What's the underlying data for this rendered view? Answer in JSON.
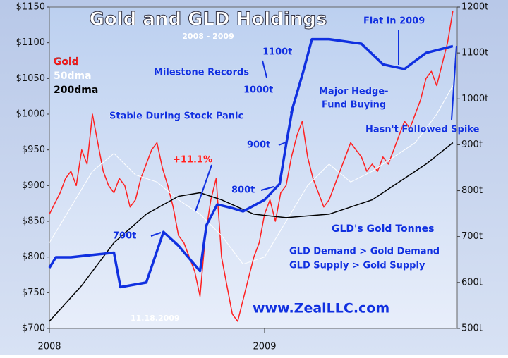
{
  "chart_data": {
    "type": "line",
    "title": "Gold and GLD Holdings",
    "subtitle": "2008 - 2009",
    "xlim": [
      2008,
      2009.895
    ],
    "xticks": [
      2008,
      2009
    ],
    "ylim": [
      700,
      1150
    ],
    "yticks": [
      {
        "value": 700,
        "label": "$700"
      },
      {
        "value": 750,
        "label": "$750"
      },
      {
        "value": 800,
        "label": "$800"
      },
      {
        "value": 850,
        "label": "$850"
      },
      {
        "value": 900,
        "label": "$900"
      },
      {
        "value": 950,
        "label": "$950"
      },
      {
        "value": 1000,
        "label": "$1000"
      },
      {
        "value": 1050,
        "label": "$1050"
      },
      {
        "value": 1100,
        "label": "$1100"
      },
      {
        "value": 1150,
        "label": "$1150"
      }
    ],
    "y2lim": [
      500,
      1200
    ],
    "y2ticks": [
      {
        "value": 500,
        "label": "500t"
      },
      {
        "value": 600,
        "label": "600t"
      },
      {
        "value": 700,
        "label": "700t"
      },
      {
        "value": 800,
        "label": "800t"
      },
      {
        "value": 900,
        "label": "900t"
      },
      {
        "value": 1000,
        "label": "1000t"
      },
      {
        "value": 1100,
        "label": "1100t"
      },
      {
        "value": 1200,
        "label": "1200t"
      }
    ],
    "series": [
      {
        "name": "Gold",
        "color": "#ff2020",
        "x": [
          2008.0,
          2008.025,
          2008.05,
          2008.075,
          2008.1,
          2008.125,
          2008.15,
          2008.175,
          2008.2,
          2008.225,
          2008.25,
          2008.275,
          2008.3,
          2008.325,
          2008.35,
          2008.375,
          2008.4,
          2008.425,
          2008.45,
          2008.475,
          2008.5,
          2008.525,
          2008.55,
          2008.575,
          2008.6,
          2008.625,
          2008.65,
          2008.675,
          2008.7,
          2008.725,
          2008.75,
          2008.775,
          2008.8,
          2008.825,
          2008.85,
          2008.875,
          2008.9,
          2008.925,
          2008.95,
          2008.975,
          2009.0,
          2009.025,
          2009.05,
          2009.075,
          2009.1,
          2009.125,
          2009.15,
          2009.175,
          2009.2,
          2009.225,
          2009.25,
          2009.275,
          2009.3,
          2009.325,
          2009.35,
          2009.375,
          2009.4,
          2009.425,
          2009.45,
          2009.475,
          2009.5,
          2009.525,
          2009.55,
          2009.575,
          2009.6,
          2009.625,
          2009.65,
          2009.675,
          2009.7,
          2009.725,
          2009.75,
          2009.775,
          2009.8,
          2009.825,
          2009.85,
          2009.875
        ],
        "values": [
          860,
          875,
          890,
          910,
          920,
          900,
          950,
          930,
          1000,
          960,
          920,
          900,
          890,
          910,
          900,
          870,
          880,
          910,
          930,
          950,
          960,
          925,
          900,
          870,
          830,
          820,
          800,
          780,
          745,
          830,
          880,
          910,
          800,
          760,
          720,
          710,
          740,
          770,
          800,
          820,
          860,
          880,
          850,
          890,
          900,
          940,
          970,
          990,
          940,
          910,
          890,
          870,
          880,
          900,
          920,
          940,
          960,
          950,
          940,
          920,
          930,
          920,
          940,
          930,
          950,
          970,
          990,
          980,
          1000,
          1020,
          1050,
          1060,
          1040,
          1070,
          1100,
          1145
        ]
      },
      {
        "name": "50dma",
        "color": "#ffffff",
        "x": [
          2008.0,
          2008.1,
          2008.2,
          2008.3,
          2008.4,
          2008.5,
          2008.6,
          2008.7,
          2008.8,
          2008.9,
          2009.0,
          2009.1,
          2009.2,
          2009.3,
          2009.4,
          2009.5,
          2009.6,
          2009.7,
          2009.8,
          2009.875
        ],
        "values": [
          820,
          870,
          920,
          945,
          915,
          905,
          880,
          860,
          830,
          790,
          800,
          850,
          900,
          930,
          905,
          920,
          940,
          960,
          1000,
          1040
        ]
      },
      {
        "name": "200dma",
        "color": "#000000",
        "x": [
          2008.0,
          2008.15,
          2008.3,
          2008.45,
          2008.6,
          2008.7,
          2008.8,
          2008.95,
          2009.1,
          2009.3,
          2009.5,
          2009.6,
          2009.75,
          2009.875
        ],
        "values": [
          710,
          760,
          820,
          860,
          885,
          890,
          880,
          860,
          855,
          860,
          880,
          900,
          930,
          960
        ]
      },
      {
        "name": "GLD's Gold Tonnes",
        "color": "#1030e0",
        "axis": "y2",
        "x": [
          2008.0,
          2008.03,
          2008.1,
          2008.3,
          2008.33,
          2008.45,
          2008.53,
          2008.6,
          2008.7,
          2008.73,
          2008.78,
          2008.85,
          2008.9,
          2009.0,
          2009.07,
          2009.1,
          2009.13,
          2009.18,
          2009.22,
          2009.3,
          2009.45,
          2009.55,
          2009.65,
          2009.75,
          2009.875
        ],
        "values": [
          632,
          655,
          655,
          665,
          590,
          600,
          710,
          680,
          625,
          725,
          770,
          762,
          755,
          780,
          815,
          900,
          980,
          1060,
          1130,
          1130,
          1120,
          1075,
          1065,
          1100,
          1115
        ]
      }
    ],
    "annotations": [
      "Flat in 2009",
      "1100t",
      "Milestone Records",
      "1000t",
      "Major Hedge-",
      "Fund Buying",
      "Stable During Stock Panic",
      "Hasn't Followed Spike",
      "900t",
      "+11.1%",
      "800t",
      "700t",
      "GLD Demand > Gold Demand",
      "GLD Supply > Gold Supply",
      "www.ZealLLC.com",
      "11.18.2009"
    ]
  }
}
